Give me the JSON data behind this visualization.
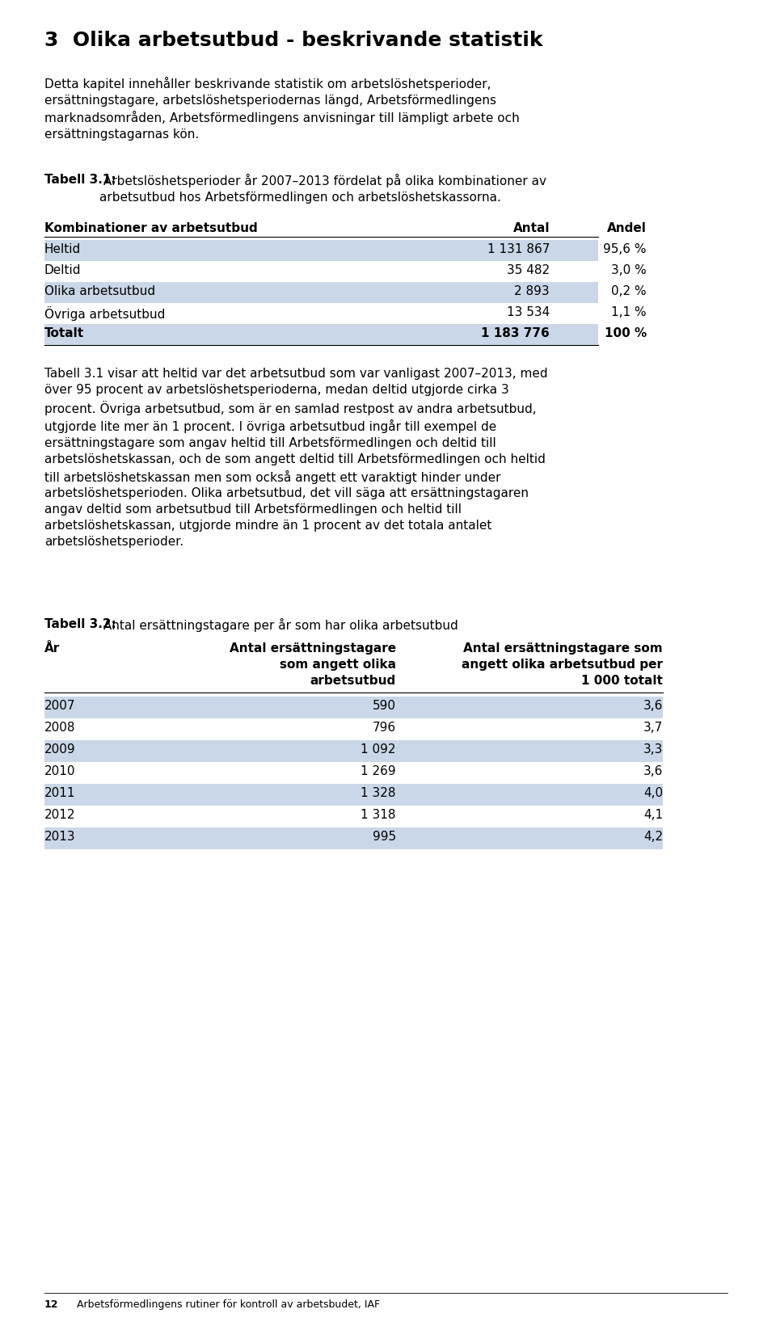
{
  "page_bg": "#ffffff",
  "heading": "3  Olika arbetsutbud - beskrivande statistik",
  "intro_text": "Detta kapitel innehåller beskrivande statistik om arbetslöshetsperioder,\nersättningstagare, arbetslöshetsperiodernas längd, Arbetsförmedlingens\nmarknadsområden, Arbetsförmedlingens anvisningar till lämpligt arbete och\nersättningstagarnas kön.",
  "table1_caption_bold": "Tabell 3.1:",
  "table1_caption_normal": " Arbetslöshetsperioder år 2007–2013 fördelat på olika kombinationer av\narbetsutbud hos Arbetsförmedlingen och arbetslöshetskassorna.",
  "table1_header": [
    "Kombinationer av arbetsutbud",
    "Antal",
    "Andel"
  ],
  "table1_rows": [
    [
      "Heltid",
      "1 131 867",
      "95,6 %"
    ],
    [
      "Deltid",
      "35 482",
      "3,0 %"
    ],
    [
      "Olika arbetsutbud",
      "2 893",
      "0,2 %"
    ],
    [
      "Övriga arbetsutbud",
      "13 534",
      "1,1 %"
    ],
    [
      "Totalt",
      "1 183 776",
      "100 %"
    ]
  ],
  "table1_shaded_rows": [
    0,
    2,
    4
  ],
  "shade_color": "#c9d7e8",
  "body_text": "Tabell 3.1 visar att heltid var det arbetsutbud som var vanligast 2007–2013, med\növer 95 procent av arbetslöshetsperioderna, medan deltid utgjorde cirka 3\nprocent. Övriga arbetsutbud, som är en samlad restpost av andra arbetsutbud,\nutgjorde lite mer än 1 procent. I övriga arbetsutbud ingår till exempel de\nersättningstagare som angav heltid till Arbetsförmedlingen och deltid till\narbetslöshetskassan, och de som angett deltid till Arbetsförmedlingen och heltid\ntill arbetslöshetskassan men som också angett ett varaktigt hinder under\narbetslöshetsperioden. Olika arbetsutbud, det vill säga att ersättningstagaren\nangav deltid som arbetsutbud till Arbetsförmedlingen och heltid till\narbetslöshetskassan, utgjorde mindre än 1 procent av det totala antalet\narbetslöshetsperioder.",
  "table2_caption_bold": "Tabell 3.2:",
  "table2_caption_normal": " Antal ersättningstagare per år som har olika arbetsutbud",
  "table2_header_col1": "År",
  "table2_header_col2": "Antal ersättningstagare\nsom angett olika\narbetsutbud",
  "table2_header_col3": "Antal ersättningstagare som\nangett olika arbetsutbud per\n1 000 totalt",
  "table2_rows": [
    [
      "2007",
      "590",
      "3,6"
    ],
    [
      "2008",
      "796",
      "3,7"
    ],
    [
      "2009",
      "1 092",
      "3,3"
    ],
    [
      "2010",
      "1 269",
      "3,6"
    ],
    [
      "2011",
      "1 328",
      "4,0"
    ],
    [
      "2012",
      "1 318",
      "4,1"
    ],
    [
      "2013",
      "995",
      "4,2"
    ]
  ],
  "table2_shaded_rows": [
    0,
    2,
    4,
    6
  ],
  "footer_number": "12",
  "footer_text": "Arbetsförmedlingens rutiner för kontroll av arbetsbudet, IAF"
}
